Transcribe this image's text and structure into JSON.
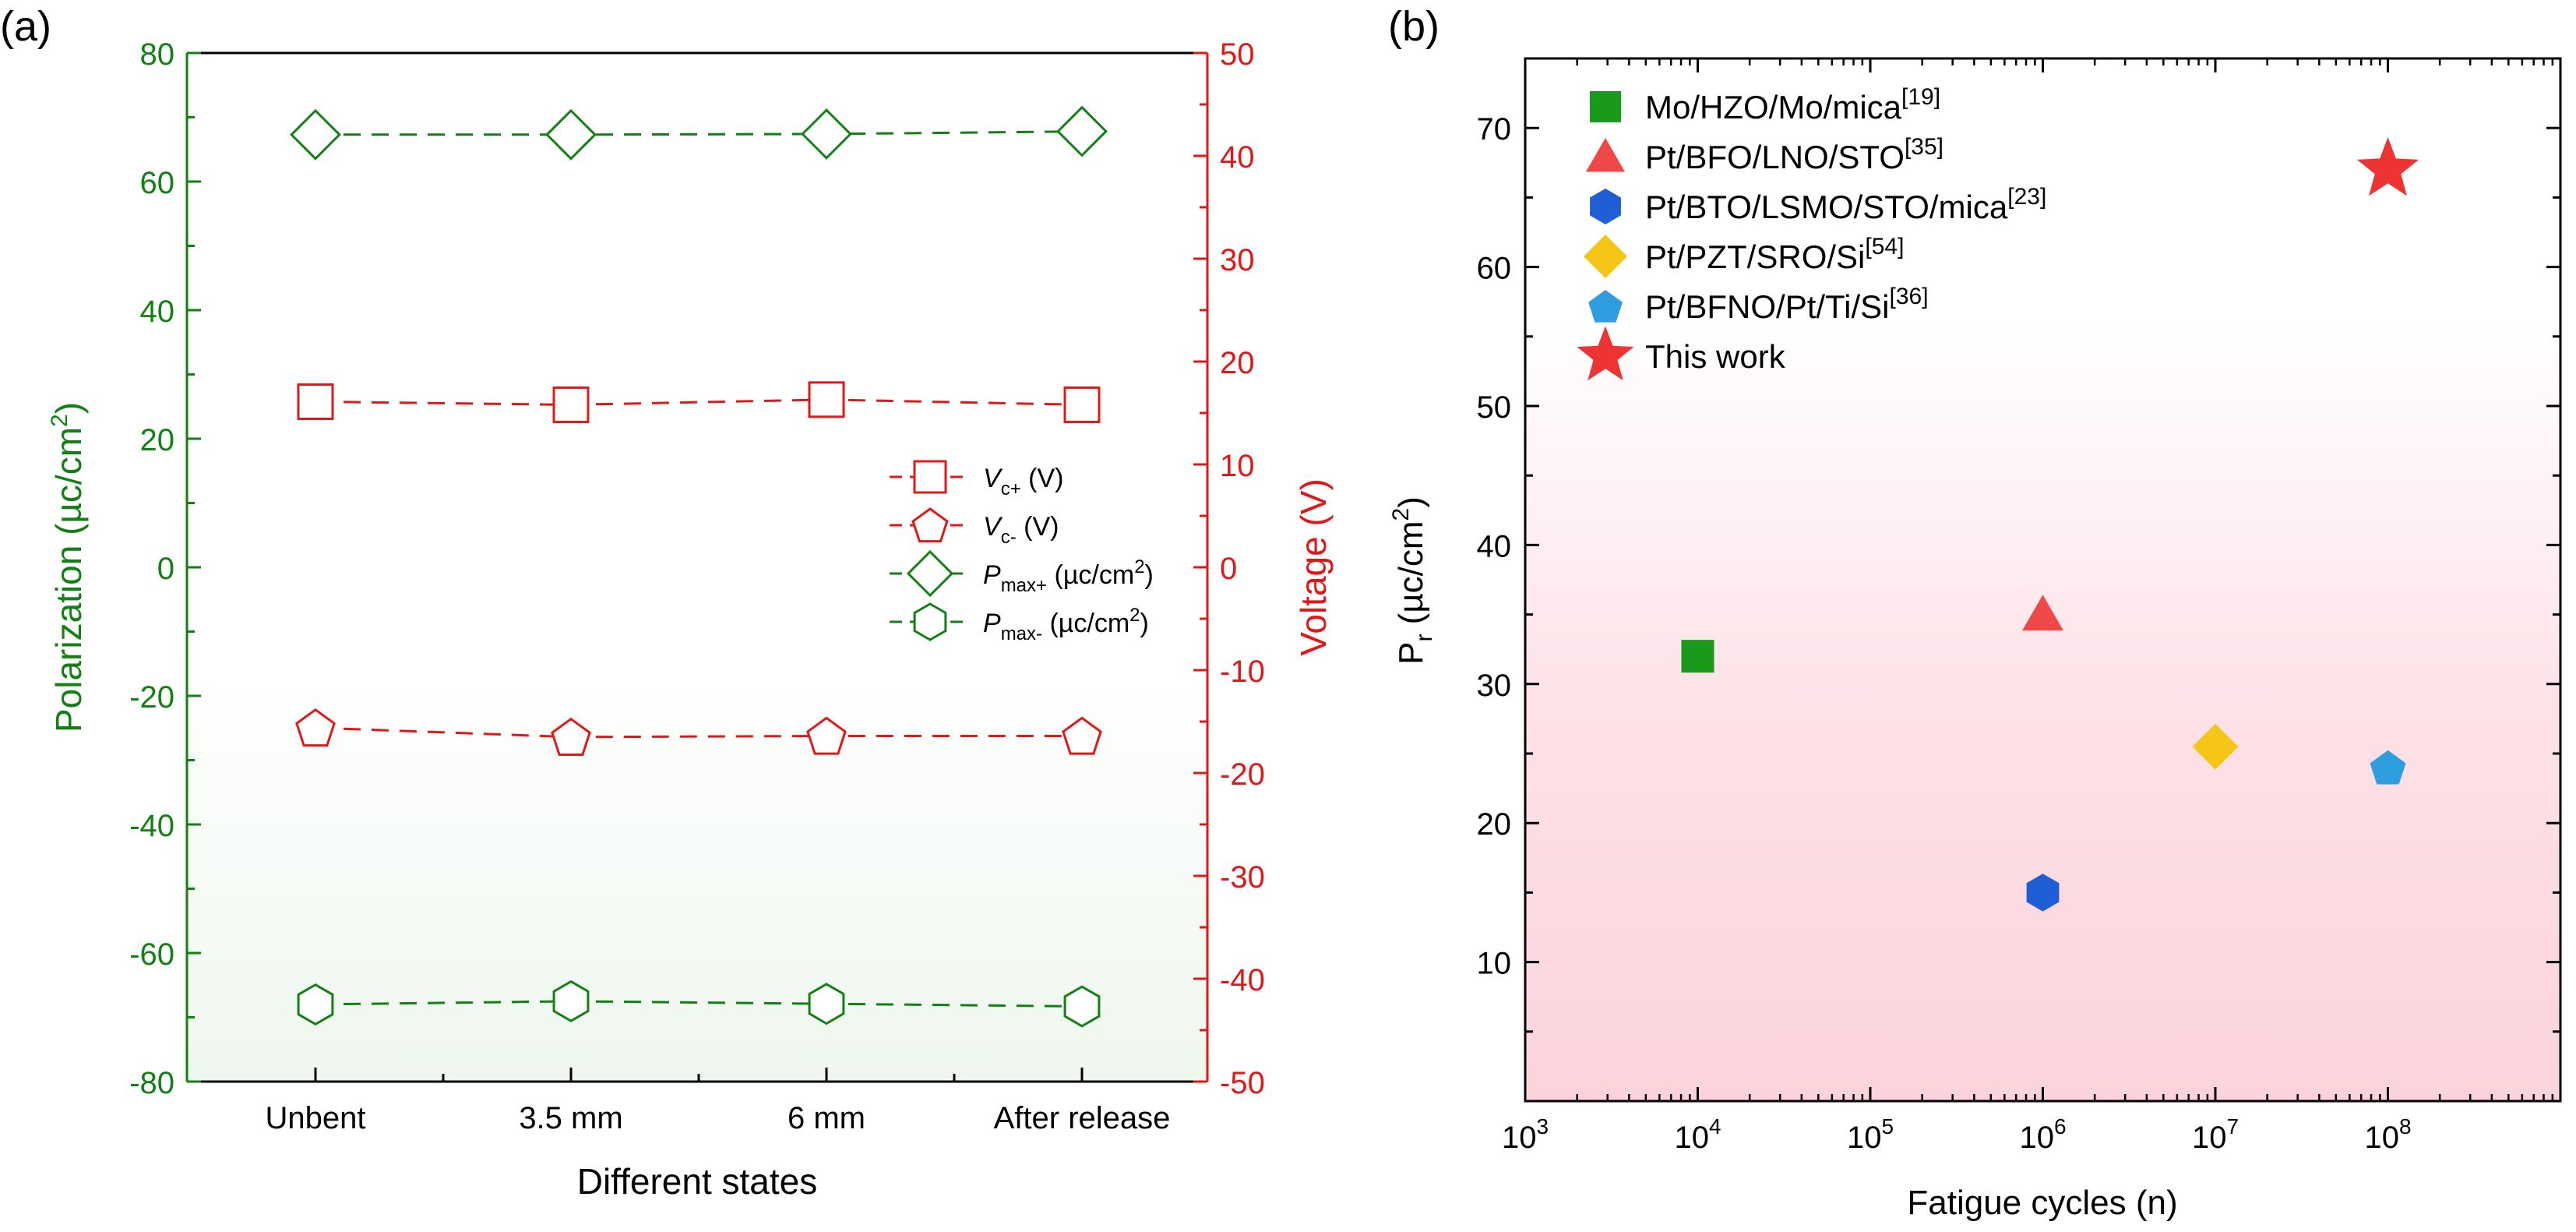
{
  "panel_labels": {
    "a": "(a)",
    "b": "(b)"
  },
  "colors": {
    "green": "#128012",
    "red": "#e01818",
    "black": "#000000"
  },
  "chart_data": [
    {
      "type": "line",
      "panel": "(a)",
      "title": "",
      "xlabel": "Different states",
      "ylabel_left": {
        "main": "Polarization (µc/cm",
        "sup": "2",
        "end": ")"
      },
      "ylabel_right": "Voltage (V)",
      "categories": [
        "Unbent",
        "3.5 mm",
        "6 mm",
        "After release"
      ],
      "ylim_left": [
        -80,
        80
      ],
      "yticks_left": [
        -80,
        -60,
        -40,
        -20,
        0,
        20,
        40,
        60,
        80
      ],
      "ylim_right": [
        -50,
        50
      ],
      "yticks_right": [
        -50,
        -40,
        -30,
        -20,
        -10,
        0,
        10,
        20,
        30,
        40,
        50
      ],
      "grid": false,
      "legend_position": "center-right",
      "series": [
        {
          "name": "V_c+ (V)",
          "label_main": "V",
          "label_sub": "c+",
          "label_unit": " (V)",
          "marker": "square",
          "color": "#e01818",
          "axis": "right",
          "values": [
            16.1,
            15.8,
            16.3,
            15.8
          ]
        },
        {
          "name": "V_c- (V)",
          "label_main": "V",
          "label_sub": "c-",
          "label_unit": " (V)",
          "marker": "pentagon",
          "color": "#e01818",
          "axis": "right",
          "values": [
            -15.6,
            -16.5,
            -16.4,
            -16.4
          ]
        },
        {
          "name": "P_max+ (µc/cm2)",
          "label_main": "P",
          "label_sub": "max+",
          "label_unit": " (µc/cm",
          "label_unit_sup": "2",
          "label_unit_end": ")",
          "marker": "diamond",
          "color": "#128012",
          "axis": "left",
          "values": [
            67.3,
            67.3,
            67.4,
            67.8
          ]
        },
        {
          "name": "P_max- (µc/cm2)",
          "label_main": "P",
          "label_sub": "max-",
          "label_unit": " (µc/cm",
          "label_unit_sup": "2",
          "label_unit_end": ")",
          "marker": "hexagon",
          "color": "#128012",
          "axis": "left",
          "values": [
            -68.0,
            -67.5,
            -67.9,
            -68.3
          ]
        }
      ]
    },
    {
      "type": "scatter",
      "panel": "(b)",
      "title": "",
      "xlabel": "Fatigue cycles (n)",
      "ylabel": {
        "main": "P",
        "sub": "r",
        "unit": " (µc/cm",
        "sup": "2",
        "end": ")"
      },
      "x_scale": "log",
      "xlim": [
        1000,
        1000000000
      ],
      "xticks": [
        1000,
        10000,
        100000,
        1000000,
        10000000,
        100000000
      ],
      "xtick_labels": [
        {
          "base": "10",
          "exp": "3"
        },
        {
          "base": "10",
          "exp": "4"
        },
        {
          "base": "10",
          "exp": "5"
        },
        {
          "base": "10",
          "exp": "6"
        },
        {
          "base": "10",
          "exp": "7"
        },
        {
          "base": "10",
          "exp": "8"
        }
      ],
      "ylim": [
        0,
        75
      ],
      "yticks": [
        10,
        20,
        30,
        40,
        50,
        60,
        70
      ],
      "grid": false,
      "legend_position": "top-left",
      "background_gradient": [
        "#ffffff",
        "#fcd5dd"
      ],
      "points": [
        {
          "label": "Mo/HZO/Mo/mica",
          "ref": "[19]",
          "x": 10000,
          "y": 32,
          "marker": "square",
          "color": "#1a9a1a"
        },
        {
          "label": "Pt/BFO/LNO/STO",
          "ref": "[35]",
          "x": 1000000,
          "y": 35,
          "marker": "triangle",
          "color": "#f04848"
        },
        {
          "label": "Pt/BTO/LSMO/STO/mica",
          "ref": "[23]",
          "x": 1000000,
          "y": 15,
          "marker": "hexagon",
          "color": "#1f5fd6"
        },
        {
          "label": "Pt/PZT/SRO/Si",
          "ref": "[54]",
          "x": 10000000,
          "y": 25.5,
          "marker": "diamond",
          "color": "#f5c518"
        },
        {
          "label": "Pt/BFNO/Pt/Ti/Si",
          "ref": "[36]",
          "x": 100000000,
          "y": 24,
          "marker": "pentagon",
          "color": "#2e9ee0"
        },
        {
          "label": "This work",
          "ref": "",
          "x": 100000000,
          "y": 67,
          "marker": "star",
          "color": "#ee3333"
        }
      ]
    }
  ]
}
